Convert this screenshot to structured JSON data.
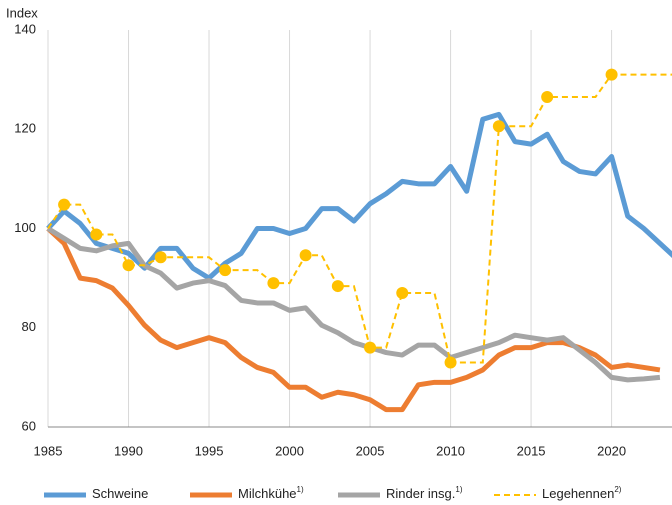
{
  "chart_data": {
    "type": "line",
    "ylabel": "Index",
    "x": [
      1985,
      1986,
      1987,
      1988,
      1989,
      1990,
      1991,
      1992,
      1993,
      1994,
      1995,
      1996,
      1997,
      1998,
      1999,
      2000,
      2001,
      2002,
      2003,
      2004,
      2005,
      2006,
      2007,
      2008,
      2009,
      2010,
      2011,
      2012,
      2013,
      2014,
      2015,
      2016,
      2017,
      2018,
      2019,
      2020,
      2021,
      2022,
      2023,
      2024
    ],
    "xlim": [
      1985,
      2024
    ],
    "xticks": [
      1985,
      1990,
      1995,
      2000,
      2005,
      2010,
      2015,
      2020
    ],
    "ylim": [
      60,
      140
    ],
    "yticks": [
      60,
      80,
      100,
      120,
      140
    ],
    "grid": true,
    "series": [
      {
        "name": "Schweine",
        "color": "#5b9bd5",
        "values": [
          100,
          103.5,
          101,
          97,
          96,
          95,
          92,
          96,
          96,
          92,
          90,
          93,
          95,
          100,
          100,
          99,
          100,
          104,
          104,
          101.5,
          105,
          107,
          109.5,
          109,
          109,
          112.5,
          107.5,
          122,
          123,
          117.5,
          117,
          119,
          113.5,
          111.5,
          111,
          114.5,
          102.5,
          100,
          97,
          94
        ]
      },
      {
        "name": "Milchkühe",
        "note": "1)",
        "color": "#ed7d31",
        "values": [
          100,
          97,
          90,
          89.5,
          88,
          84.5,
          80.5,
          77.5,
          76,
          77,
          78,
          77,
          74,
          72,
          71,
          68,
          68,
          66,
          67,
          66.5,
          65.5,
          63.5,
          63.5,
          68.5,
          69,
          69,
          70,
          71.5,
          74.5,
          76,
          76,
          77,
          77,
          76,
          74.5,
          72,
          72.5,
          72,
          71.5,
          null
        ]
      },
      {
        "name": "Rinder insg.",
        "note": "1)",
        "color": "#a5a5a5",
        "values": [
          100,
          98,
          96,
          95.5,
          96.5,
          97,
          92.5,
          91,
          88,
          89,
          89.5,
          88.5,
          85.5,
          85,
          85,
          83.5,
          84,
          80.5,
          79,
          77,
          76,
          75,
          74.5,
          76.5,
          76.5,
          74,
          75,
          76,
          77,
          78.5,
          78,
          77.5,
          78,
          75.5,
          73,
          70,
          69.5,
          69.7,
          70,
          null
        ]
      },
      {
        "name": "Legehennen",
        "note": "2)",
        "color": "#ffc000",
        "dashed": true,
        "markers": true,
        "x": [
          1985,
          1986,
          1988,
          1990,
          1992,
          1996,
          1999,
          2001,
          2003,
          2005,
          2007,
          2010,
          2013,
          2016,
          2020
        ],
        "values": [
          100,
          104.8,
          98.8,
          92.6,
          94.2,
          91.6,
          89,
          94.6,
          88.4,
          76,
          87,
          73,
          120.6,
          126.5,
          131
        ]
      }
    ]
  }
}
